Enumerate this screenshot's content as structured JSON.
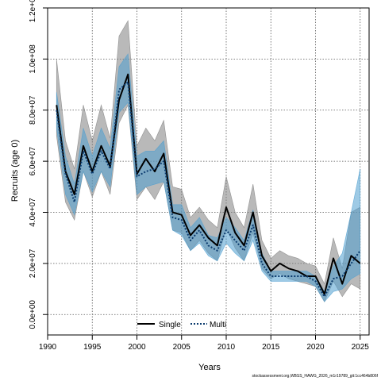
{
  "chart_data": {
    "type": "line",
    "xlabel": "Years",
    "ylabel": "Recruits (age 0)",
    "xlim": [
      1990,
      2026
    ],
    "ylim": [
      -8000000,
      120000000
    ],
    "x_ticks": [
      1990,
      1995,
      2000,
      2005,
      2010,
      2015,
      2020,
      2025
    ],
    "y_ticks": [
      0,
      20000000,
      40000000,
      60000000,
      80000000,
      100000000,
      120000000
    ],
    "y_tick_labels": [
      "0.0e+00",
      "2.0e+07",
      "4.0e+07",
      "6.0e+07",
      "8.0e+07",
      "1.0e+08",
      "1.2e+08"
    ],
    "grid": true,
    "legend_position": "bottom",
    "x": [
      1991,
      1992,
      1993,
      1994,
      1995,
      1996,
      1997,
      1998,
      1999,
      2000,
      2001,
      2002,
      2003,
      2004,
      2005,
      2006,
      2007,
      2008,
      2009,
      2010,
      2011,
      2012,
      2013,
      2014,
      2015,
      2016,
      2017,
      2018,
      2019,
      2020,
      2021,
      2022,
      2023,
      2024,
      2025
    ],
    "series": [
      {
        "name": "Single",
        "style": "solid",
        "color": "#000000",
        "band_color": "#7f7f7f",
        "values": [
          82000000,
          56000000,
          47000000,
          66000000,
          56000000,
          66000000,
          58000000,
          84000000,
          94000000,
          55000000,
          61000000,
          56000000,
          63000000,
          40000000,
          39000000,
          31000000,
          35000000,
          30000000,
          27000000,
          42000000,
          32000000,
          27000000,
          40000000,
          23000000,
          17000000,
          20000000,
          18000000,
          17000000,
          15000000,
          15000000,
          8000000,
          22000000,
          12000000,
          23000000,
          20000000
        ],
        "lower": [
          70000000,
          44000000,
          37000000,
          56000000,
          46000000,
          56000000,
          47000000,
          75000000,
          82000000,
          45000000,
          50000000,
          45000000,
          52000000,
          33000000,
          32000000,
          25000000,
          29000000,
          24000000,
          21000000,
          34000000,
          26000000,
          21000000,
          32000000,
          18000000,
          14000000,
          16000000,
          14000000,
          13000000,
          12000000,
          11000000,
          5000000,
          13000000,
          7000000,
          12000000,
          10000000
        ],
        "upper": [
          100000000,
          68000000,
          57000000,
          82000000,
          68000000,
          82000000,
          69000000,
          109000000,
          115000000,
          66000000,
          73000000,
          68000000,
          76000000,
          50000000,
          49000000,
          38000000,
          42000000,
          37000000,
          34000000,
          54000000,
          40000000,
          34000000,
          51000000,
          29000000,
          22000000,
          25000000,
          23000000,
          22000000,
          20000000,
          19000000,
          12000000,
          30000000,
          18000000,
          40000000,
          42000000
        ]
      },
      {
        "name": "Multi",
        "style": "dotted",
        "color": "#0b3b6e",
        "band_color": "#4f9fd0",
        "values": [
          80000000,
          55000000,
          44000000,
          64000000,
          55000000,
          64000000,
          57000000,
          88000000,
          91000000,
          54000000,
          56000000,
          57000000,
          60000000,
          38000000,
          37000000,
          29000000,
          33000000,
          27000000,
          25000000,
          33000000,
          29000000,
          25000000,
          35000000,
          20000000,
          15000000,
          15000000,
          15000000,
          15000000,
          15000000,
          13000000,
          7000000,
          14000000,
          15000000,
          20000000,
          25000000
        ],
        "lower": [
          73000000,
          47000000,
          39000000,
          56000000,
          48000000,
          56000000,
          50000000,
          79000000,
          83000000,
          47000000,
          50000000,
          51000000,
          52000000,
          33000000,
          31000000,
          25000000,
          28000000,
          23000000,
          21000000,
          28000000,
          24000000,
          21000000,
          29000000,
          17000000,
          13000000,
          13000000,
          13000000,
          13000000,
          13000000,
          11000000,
          5000000,
          9000000,
          10000000,
          14000000,
          16000000
        ],
        "upper": [
          87000000,
          62000000,
          51000000,
          73000000,
          62000000,
          73000000,
          65000000,
          97000000,
          102000000,
          62000000,
          64000000,
          64000000,
          68000000,
          43000000,
          43000000,
          34000000,
          38000000,
          31000000,
          30000000,
          38000000,
          34000000,
          29000000,
          41000000,
          24000000,
          17000000,
          17000000,
          17000000,
          17000000,
          17000000,
          15000000,
          9000000,
          19000000,
          24000000,
          40000000,
          57000000
        ]
      }
    ]
  },
  "footer_text": "stockassessment.org,WBSS_HAWG_2026_m1r19789_git:1cc464b806f"
}
